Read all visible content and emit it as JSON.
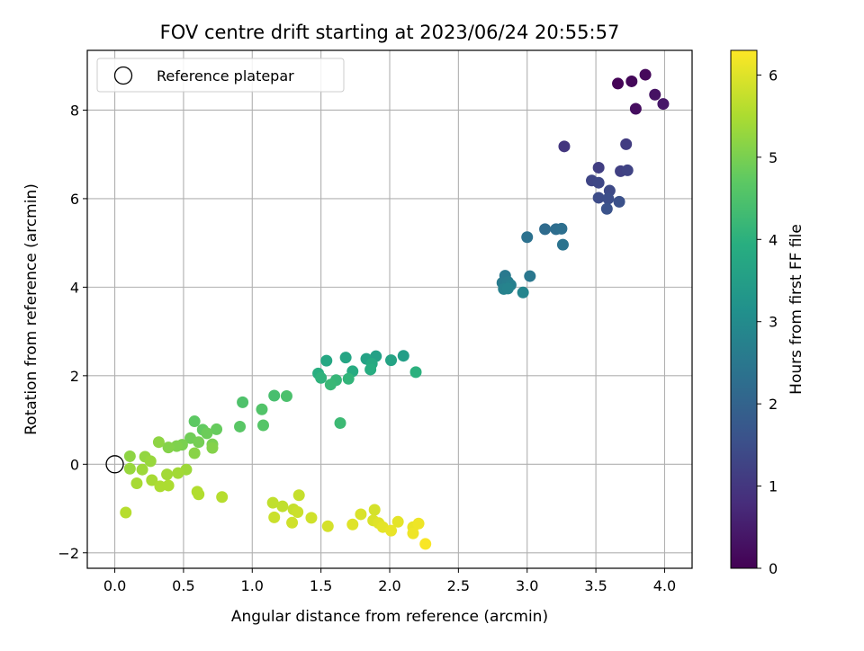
{
  "chart_data": {
    "type": "scatter",
    "title": "FOV centre drift starting at 2023/06/24 20:55:57",
    "xlabel": "Angular distance from reference (arcmin)",
    "ylabel": "Rotation from reference (arcmin)",
    "xlim": [
      -0.2,
      4.2
    ],
    "ylim": [
      -2.35,
      9.35
    ],
    "xticks": [
      "0.0",
      "0.5",
      "1.0",
      "1.5",
      "2.0",
      "2.5",
      "3.0",
      "3.5",
      "4.0"
    ],
    "yticks": [
      "−2",
      "0",
      "2",
      "4",
      "6",
      "8"
    ],
    "grid": true,
    "legend": {
      "placement": "top-left",
      "entries": [
        "Reference platepar"
      ]
    },
    "reference_point": {
      "x": 0.0,
      "y": 0.0
    },
    "colorbar": {
      "label": "Hours from first FF file",
      "range": [
        0,
        6.3
      ],
      "ticks": [
        "0",
        "1",
        "2",
        "3",
        "4",
        "5",
        "6"
      ],
      "colormap": "viridis"
    },
    "points": [
      [
        3.66,
        8.6,
        0.05
      ],
      [
        3.76,
        8.65,
        0.1
      ],
      [
        3.86,
        8.8,
        0.15
      ],
      [
        3.79,
        8.03,
        0.22
      ],
      [
        3.93,
        8.35,
        0.3
      ],
      [
        3.99,
        8.14,
        0.4
      ],
      [
        3.27,
        7.18,
        1.0
      ],
      [
        3.72,
        7.23,
        1.1
      ],
      [
        3.52,
        6.7,
        1.15
      ],
      [
        3.68,
        6.62,
        1.2
      ],
      [
        3.73,
        6.64,
        1.25
      ],
      [
        3.47,
        6.41,
        1.3
      ],
      [
        3.52,
        6.36,
        1.35
      ],
      [
        3.6,
        6.18,
        1.4
      ],
      [
        3.52,
        6.02,
        1.45
      ],
      [
        3.59,
        6.0,
        1.5
      ],
      [
        3.67,
        5.93,
        1.55
      ],
      [
        3.58,
        5.77,
        1.6
      ],
      [
        3.13,
        5.31,
        2.2
      ],
      [
        3.21,
        5.31,
        2.25
      ],
      [
        3.25,
        5.32,
        2.3
      ],
      [
        3.0,
        5.13,
        2.35
      ],
      [
        3.26,
        4.96,
        2.4
      ],
      [
        3.02,
        4.25,
        2.5
      ],
      [
        2.84,
        4.26,
        2.55
      ],
      [
        2.82,
        4.1,
        2.6
      ],
      [
        2.86,
        4.12,
        2.65
      ],
      [
        2.88,
        4.05,
        2.7
      ],
      [
        2.83,
        3.96,
        2.75
      ],
      [
        2.86,
        3.97,
        2.8
      ],
      [
        2.97,
        3.88,
        2.85
      ],
      [
        2.1,
        2.45,
        3.5
      ],
      [
        1.9,
        2.44,
        3.55
      ],
      [
        1.83,
        2.38,
        3.6
      ],
      [
        2.01,
        2.35,
        3.65
      ],
      [
        1.68,
        2.41,
        3.7
      ],
      [
        1.54,
        2.34,
        3.75
      ],
      [
        1.87,
        2.27,
        3.8
      ],
      [
        1.73,
        2.1,
        3.85
      ],
      [
        1.86,
        2.14,
        3.9
      ],
      [
        1.48,
        2.05,
        3.95
      ],
      [
        2.19,
        2.08,
        4.0
      ],
      [
        1.5,
        1.95,
        4.05
      ],
      [
        1.7,
        1.93,
        4.1
      ],
      [
        1.61,
        1.9,
        4.15
      ],
      [
        1.57,
        1.8,
        4.2
      ],
      [
        1.64,
        0.93,
        4.25
      ],
      [
        1.16,
        1.55,
        4.4
      ],
      [
        1.25,
        1.54,
        4.45
      ],
      [
        0.93,
        1.4,
        4.5
      ],
      [
        1.07,
        1.24,
        4.55
      ],
      [
        1.08,
        0.88,
        4.6
      ],
      [
        0.91,
        0.85,
        4.65
      ],
      [
        0.58,
        0.97,
        4.7
      ],
      [
        0.64,
        0.78,
        4.75
      ],
      [
        0.74,
        0.79,
        4.8
      ],
      [
        0.67,
        0.7,
        4.85
      ],
      [
        0.55,
        0.59,
        4.9
      ],
      [
        0.61,
        0.5,
        4.95
      ],
      [
        0.71,
        0.45,
        5.0
      ],
      [
        0.49,
        0.44,
        5.0
      ],
      [
        0.45,
        0.41,
        5.05
      ],
      [
        0.39,
        0.38,
        5.1
      ],
      [
        0.71,
        0.37,
        5.1
      ],
      [
        0.58,
        0.25,
        5.15
      ],
      [
        0.32,
        0.5,
        5.2
      ],
      [
        0.11,
        0.18,
        5.2
      ],
      [
        0.22,
        0.17,
        5.25
      ],
      [
        0.26,
        0.07,
        5.3
      ],
      [
        0.11,
        -0.1,
        5.3
      ],
      [
        0.2,
        -0.12,
        5.35
      ],
      [
        0.52,
        -0.12,
        5.35
      ],
      [
        0.38,
        -0.23,
        5.4
      ],
      [
        0.46,
        -0.2,
        5.4
      ],
      [
        0.27,
        -0.36,
        5.45
      ],
      [
        0.16,
        -0.43,
        5.45
      ],
      [
        0.33,
        -0.5,
        5.5
      ],
      [
        0.39,
        -0.48,
        5.5
      ],
      [
        0.6,
        -0.62,
        5.55
      ],
      [
        0.61,
        -0.68,
        5.55
      ],
      [
        0.78,
        -0.74,
        5.6
      ],
      [
        0.08,
        -1.09,
        5.6
      ],
      [
        1.15,
        -0.87,
        5.7
      ],
      [
        1.22,
        -0.95,
        5.7
      ],
      [
        1.34,
        -0.7,
        5.75
      ],
      [
        1.3,
        -1.02,
        5.75
      ],
      [
        1.33,
        -1.08,
        5.8
      ],
      [
        1.16,
        -1.2,
        5.8
      ],
      [
        1.43,
        -1.21,
        5.85
      ],
      [
        1.29,
        -1.32,
        5.85
      ],
      [
        1.55,
        -1.4,
        5.9
      ],
      [
        1.89,
        -1.03,
        5.9
      ],
      [
        1.79,
        -1.13,
        5.95
      ],
      [
        1.88,
        -1.27,
        5.95
      ],
      [
        1.73,
        -1.36,
        6.0
      ],
      [
        1.92,
        -1.33,
        6.0
      ],
      [
        2.06,
        -1.3,
        6.05
      ],
      [
        1.95,
        -1.42,
        6.05
      ],
      [
        2.01,
        -1.5,
        6.1
      ],
      [
        2.17,
        -1.42,
        6.1
      ],
      [
        2.21,
        -1.34,
        6.15
      ],
      [
        2.17,
        -1.56,
        6.15
      ],
      [
        2.26,
        -1.8,
        6.25
      ]
    ]
  }
}
